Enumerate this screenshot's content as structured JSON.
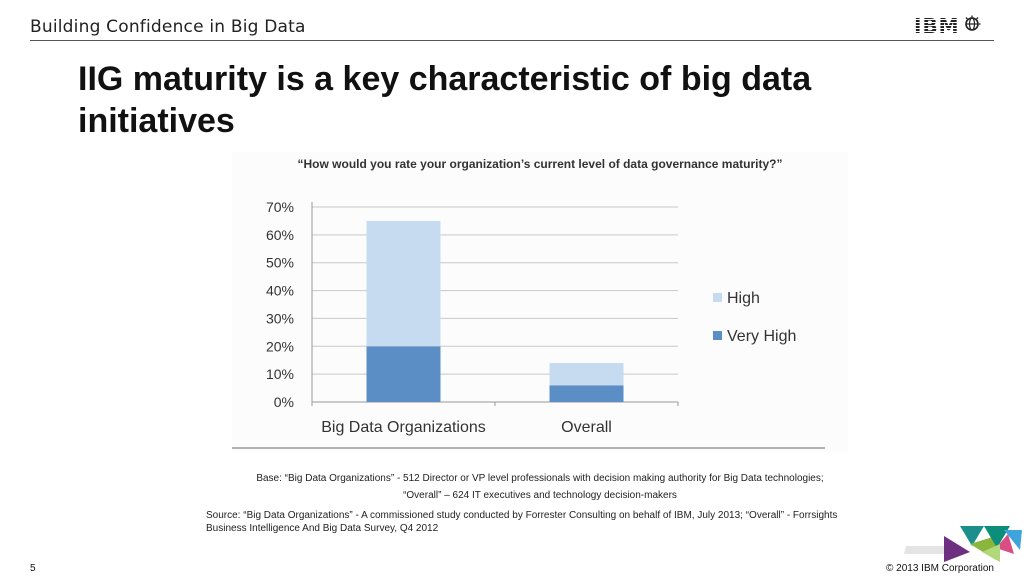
{
  "header": {
    "title": "Building Confidence in Big Data",
    "logo_text": "IBM"
  },
  "slide": {
    "title": "IIG maturity is a key characteristic of big data initiatives"
  },
  "chart_data": {
    "type": "bar",
    "stacked": true,
    "title": "“How would you rate your organization’s current level of data governance maturity?”",
    "categories": [
      "Big Data Organizations",
      "Overall"
    ],
    "series": [
      {
        "name": "Very High",
        "values": [
          20,
          6
        ],
        "color": "#5b8ec4"
      },
      {
        "name": "High",
        "values": [
          45,
          8
        ],
        "color": "#c6dbef"
      }
    ],
    "ylim": [
      0,
      70
    ],
    "yticks": [
      0,
      10,
      20,
      30,
      40,
      50,
      60,
      70
    ],
    "ytick_labels": [
      "0%",
      "10%",
      "20%",
      "30%",
      "40%",
      "50%",
      "60%",
      "70%"
    ],
    "legend_order": [
      "High",
      "Very High"
    ],
    "legend_position": "right",
    "grid": true
  },
  "notes": {
    "base_line1": "Base: “Big Data Organizations” - 512 Director or VP level professionals with decision making authority for Big Data technologies;",
    "base_line2": "“Overall” – 624 IT executives and technology decision-makers",
    "source": "Source: “Big Data Organizations” - A commissioned study conducted by Forrester Consulting on behalf of IBM, July 2013; “Overall” - Forrsights Business Intelligence And Big Data Survey, Q4 2012"
  },
  "footer": {
    "page_number": "5",
    "copyright": "© 2013 IBM Corporation"
  }
}
